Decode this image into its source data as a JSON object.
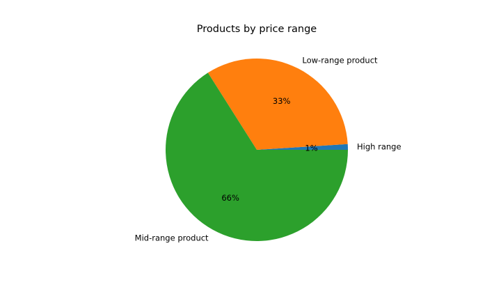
{
  "chart_data": {
    "type": "pie",
    "title": "Products by price range",
    "slices": [
      {
        "label": "High range",
        "value": 1,
        "pct_label": "1%",
        "color": "#1f77b4"
      },
      {
        "label": "Low-range product",
        "value": 33,
        "pct_label": "33%",
        "color": "#ff7f0e"
      },
      {
        "label": "Mid-range product",
        "value": 66,
        "pct_label": "66%",
        "color": "#2ca02c"
      }
    ],
    "start_angle": 0,
    "direction": "counterclockwise",
    "legend": "none"
  }
}
